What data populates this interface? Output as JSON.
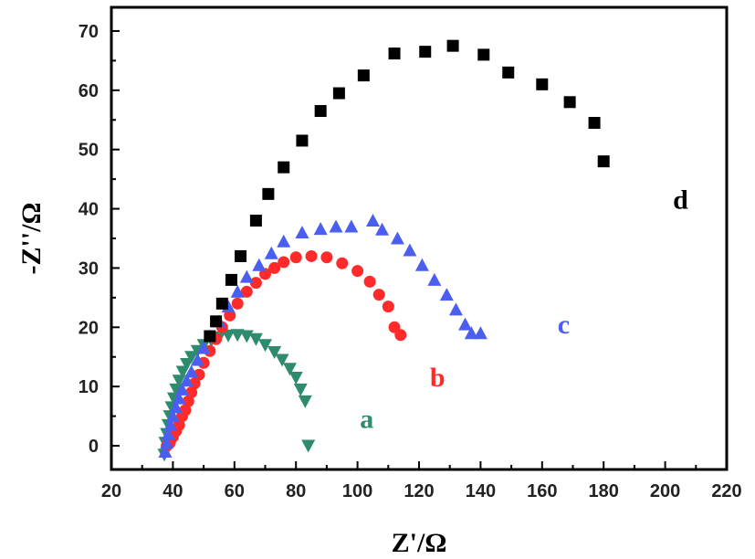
{
  "chart_data": {
    "type": "scatter",
    "title": "",
    "xlabel": "Z'/Ω",
    "ylabel": "-Z''/Ω",
    "xlim": [
      20,
      220
    ],
    "ylim": [
      -4,
      74
    ],
    "xticks": [
      20,
      40,
      60,
      80,
      100,
      120,
      140,
      160,
      180,
      200,
      220
    ],
    "yticks": [
      0,
      10,
      20,
      30,
      40,
      50,
      60,
      70
    ],
    "grid": false,
    "series": [
      {
        "name": "a",
        "color": "#2e8b6e",
        "marker": "triangle-down",
        "points": [
          [
            37.2,
            -1.5
          ],
          [
            37.5,
            0.5
          ],
          [
            38,
            2
          ],
          [
            38.5,
            3.5
          ],
          [
            39,
            5
          ],
          [
            39.6,
            6.5
          ],
          [
            40.3,
            8
          ],
          [
            41,
            9.5
          ],
          [
            42,
            11
          ],
          [
            43.2,
            12.5
          ],
          [
            44.5,
            13.8
          ],
          [
            46,
            15
          ],
          [
            48,
            16
          ],
          [
            50,
            17
          ],
          [
            52.5,
            17.8
          ],
          [
            55,
            18.3
          ],
          [
            58,
            18.6
          ],
          [
            61,
            18.7
          ],
          [
            64,
            18.5
          ],
          [
            67,
            18
          ],
          [
            70,
            17
          ],
          [
            73,
            15.8
          ],
          [
            75.5,
            14.5
          ],
          [
            78,
            13
          ],
          [
            80,
            11.5
          ],
          [
            81.5,
            9.5
          ],
          [
            83,
            7.5
          ],
          [
            84,
            0
          ]
        ]
      },
      {
        "name": "b",
        "color": "#ff2a2a",
        "marker": "circle",
        "points": [
          [
            38,
            0
          ],
          [
            39,
            0.5
          ],
          [
            40,
            1.5
          ],
          [
            41,
            2.5
          ],
          [
            42,
            3.5
          ],
          [
            43,
            5
          ],
          [
            44,
            6
          ],
          [
            45,
            7.5
          ],
          [
            46,
            9
          ],
          [
            47,
            10.5
          ],
          [
            48.5,
            12
          ],
          [
            50,
            14
          ],
          [
            52,
            16
          ],
          [
            54,
            18
          ],
          [
            56,
            20
          ],
          [
            58.5,
            22
          ],
          [
            61,
            24
          ],
          [
            64,
            26
          ],
          [
            67,
            27.5
          ],
          [
            70,
            29
          ],
          [
            73,
            30
          ],
          [
            76,
            31
          ],
          [
            80,
            31.8
          ],
          [
            85,
            32
          ],
          [
            90,
            31.8
          ],
          [
            95,
            30.8
          ],
          [
            100,
            29.5
          ],
          [
            104,
            27.7
          ],
          [
            107,
            25.5
          ],
          [
            110,
            23.5
          ],
          [
            112,
            20
          ],
          [
            114,
            18.7
          ]
        ]
      },
      {
        "name": "c",
        "color": "#4a5ff0",
        "marker": "triangle-up",
        "points": [
          [
            37.5,
            -1
          ],
          [
            38,
            0.5
          ],
          [
            38.5,
            2
          ],
          [
            39.2,
            3.5
          ],
          [
            40,
            5
          ],
          [
            41,
            6.5
          ],
          [
            42,
            8
          ],
          [
            43,
            9.5
          ],
          [
            44.5,
            11
          ],
          [
            46,
            12.5
          ],
          [
            48,
            14.5
          ],
          [
            50,
            16.5
          ],
          [
            52,
            18.5
          ],
          [
            55,
            21
          ],
          [
            58,
            23.5
          ],
          [
            61,
            26
          ],
          [
            64,
            28.5
          ],
          [
            68,
            30.5
          ],
          [
            72,
            32.5
          ],
          [
            76,
            34.5
          ],
          [
            82,
            36
          ],
          [
            88,
            36.6
          ],
          [
            93,
            37
          ],
          [
            98,
            37
          ],
          [
            105,
            38
          ],
          [
            108,
            36.5
          ],
          [
            113,
            35
          ],
          [
            117,
            33
          ],
          [
            121,
            30.5
          ],
          [
            125,
            28
          ],
          [
            129,
            25.5
          ],
          [
            132,
            23
          ],
          [
            135,
            20.5
          ],
          [
            137,
            19
          ],
          [
            140,
            19
          ]
        ]
      },
      {
        "name": "d",
        "color": "#000000",
        "marker": "square",
        "points": [
          [
            52,
            18.5
          ],
          [
            54,
            21
          ],
          [
            56,
            24
          ],
          [
            59,
            28
          ],
          [
            62,
            32
          ],
          [
            67,
            38
          ],
          [
            71,
            42.5
          ],
          [
            76,
            47
          ],
          [
            82,
            51.5
          ],
          [
            88,
            56.5
          ],
          [
            94,
            59.5
          ],
          [
            102,
            62.5
          ],
          [
            112,
            66.2
          ],
          [
            122,
            66.5
          ],
          [
            131,
            67.5
          ],
          [
            141,
            66
          ],
          [
            149,
            63
          ],
          [
            160,
            61
          ],
          [
            169,
            58
          ],
          [
            177,
            54.5
          ],
          [
            180,
            48
          ]
        ]
      }
    ],
    "annotations": [
      {
        "text": "a",
        "series": "a",
        "x": 103,
        "y": 3
      },
      {
        "text": "b",
        "series": "b",
        "x": 126,
        "y": 10
      },
      {
        "text": "c",
        "series": "c",
        "x": 167,
        "y": 19
      },
      {
        "text": "d",
        "series": "d",
        "x": 205,
        "y": 40
      }
    ]
  }
}
